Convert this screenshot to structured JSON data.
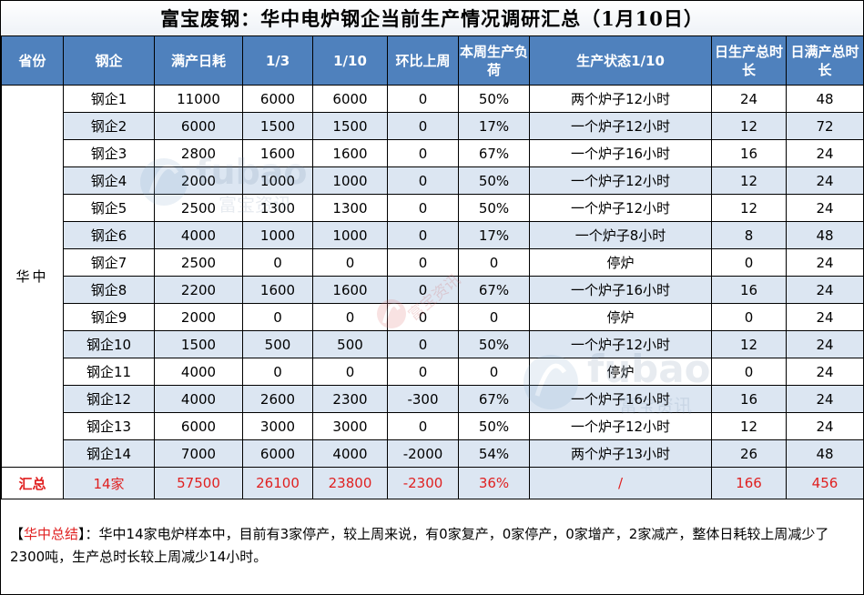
{
  "title": "富宝废钢：华中电炉钢企当前生产情况调研汇总（1月10日）",
  "headers": [
    "省份",
    "钢企",
    "满产日耗",
    "1/3",
    "1/10",
    "环比上周",
    "本周生产负荷",
    "生产状态1/10",
    "日生产总时长",
    "日满产总时长"
  ],
  "province": "华中",
  "rows": [
    [
      "钢企1",
      "11000",
      "6000",
      "6000",
      "0",
      "50%",
      "两个炉子12小时",
      "24",
      "48"
    ],
    [
      "钢企2",
      "6000",
      "1500",
      "1500",
      "0",
      "17%",
      "一个炉子12小时",
      "12",
      "72"
    ],
    [
      "钢企3",
      "2800",
      "1600",
      "1600",
      "0",
      "67%",
      "一个炉子16小时",
      "16",
      "24"
    ],
    [
      "钢企4",
      "2000",
      "1000",
      "1000",
      "0",
      "50%",
      "一个炉子12小时",
      "12",
      "24"
    ],
    [
      "钢企5",
      "2500",
      "1300",
      "1300",
      "0",
      "50%",
      "一个炉子12小时",
      "12",
      "24"
    ],
    [
      "钢企6",
      "4000",
      "1000",
      "1000",
      "0",
      "17%",
      "一个炉子8小时",
      "8",
      "48"
    ],
    [
      "钢企7",
      "2500",
      "0",
      "0",
      "0",
      "0",
      "停炉",
      "0",
      "24"
    ],
    [
      "钢企8",
      "2200",
      "1600",
      "1600",
      "0",
      "67%",
      "一个炉子16小时",
      "16",
      "24"
    ],
    [
      "钢企9",
      "2000",
      "0",
      "0",
      "0",
      "0",
      "停炉",
      "0",
      "24"
    ],
    [
      "钢企10",
      "1500",
      "500",
      "500",
      "0",
      "50%",
      "一个炉子12小时",
      "12",
      "24"
    ],
    [
      "钢企11",
      "4000",
      "0",
      "0",
      "0",
      "0",
      "停炉",
      "0",
      "24"
    ],
    [
      "钢企12",
      "4000",
      "2600",
      "2300",
      "-300",
      "67%",
      "一个炉子16小时",
      "16",
      "24"
    ],
    [
      "钢企13",
      "6000",
      "3000",
      "3000",
      "0",
      "50%",
      "一个炉子12小时",
      "12",
      "24"
    ],
    [
      "钢企14",
      "7000",
      "6000",
      "4000",
      "-2000",
      "54%",
      "两个炉子13小时",
      "26",
      "48"
    ]
  ],
  "total": [
    "汇总",
    "14家",
    "57500",
    "26100",
    "23800",
    "-2300",
    "36%",
    "/",
    "166",
    "456"
  ],
  "summary": {
    "label": "【华中总结】",
    "label_open": "【",
    "label_text": "华中总结",
    "label_close": "】",
    "text": "：华中14家电炉样本中，目前有3家停产，较上周来说，有0家复产，0家停产，0家增产，2家减产，整体日耗较上周减少了2300吨，生产总时长较上周减少14小时。"
  },
  "watermark": {
    "brand_en": "fubao",
    "brand_cn": "富宝资讯"
  },
  "colors": {
    "header_bg": "#4f81bd",
    "stripe_bg": "#dce6f2",
    "highlight": "#e02020"
  }
}
